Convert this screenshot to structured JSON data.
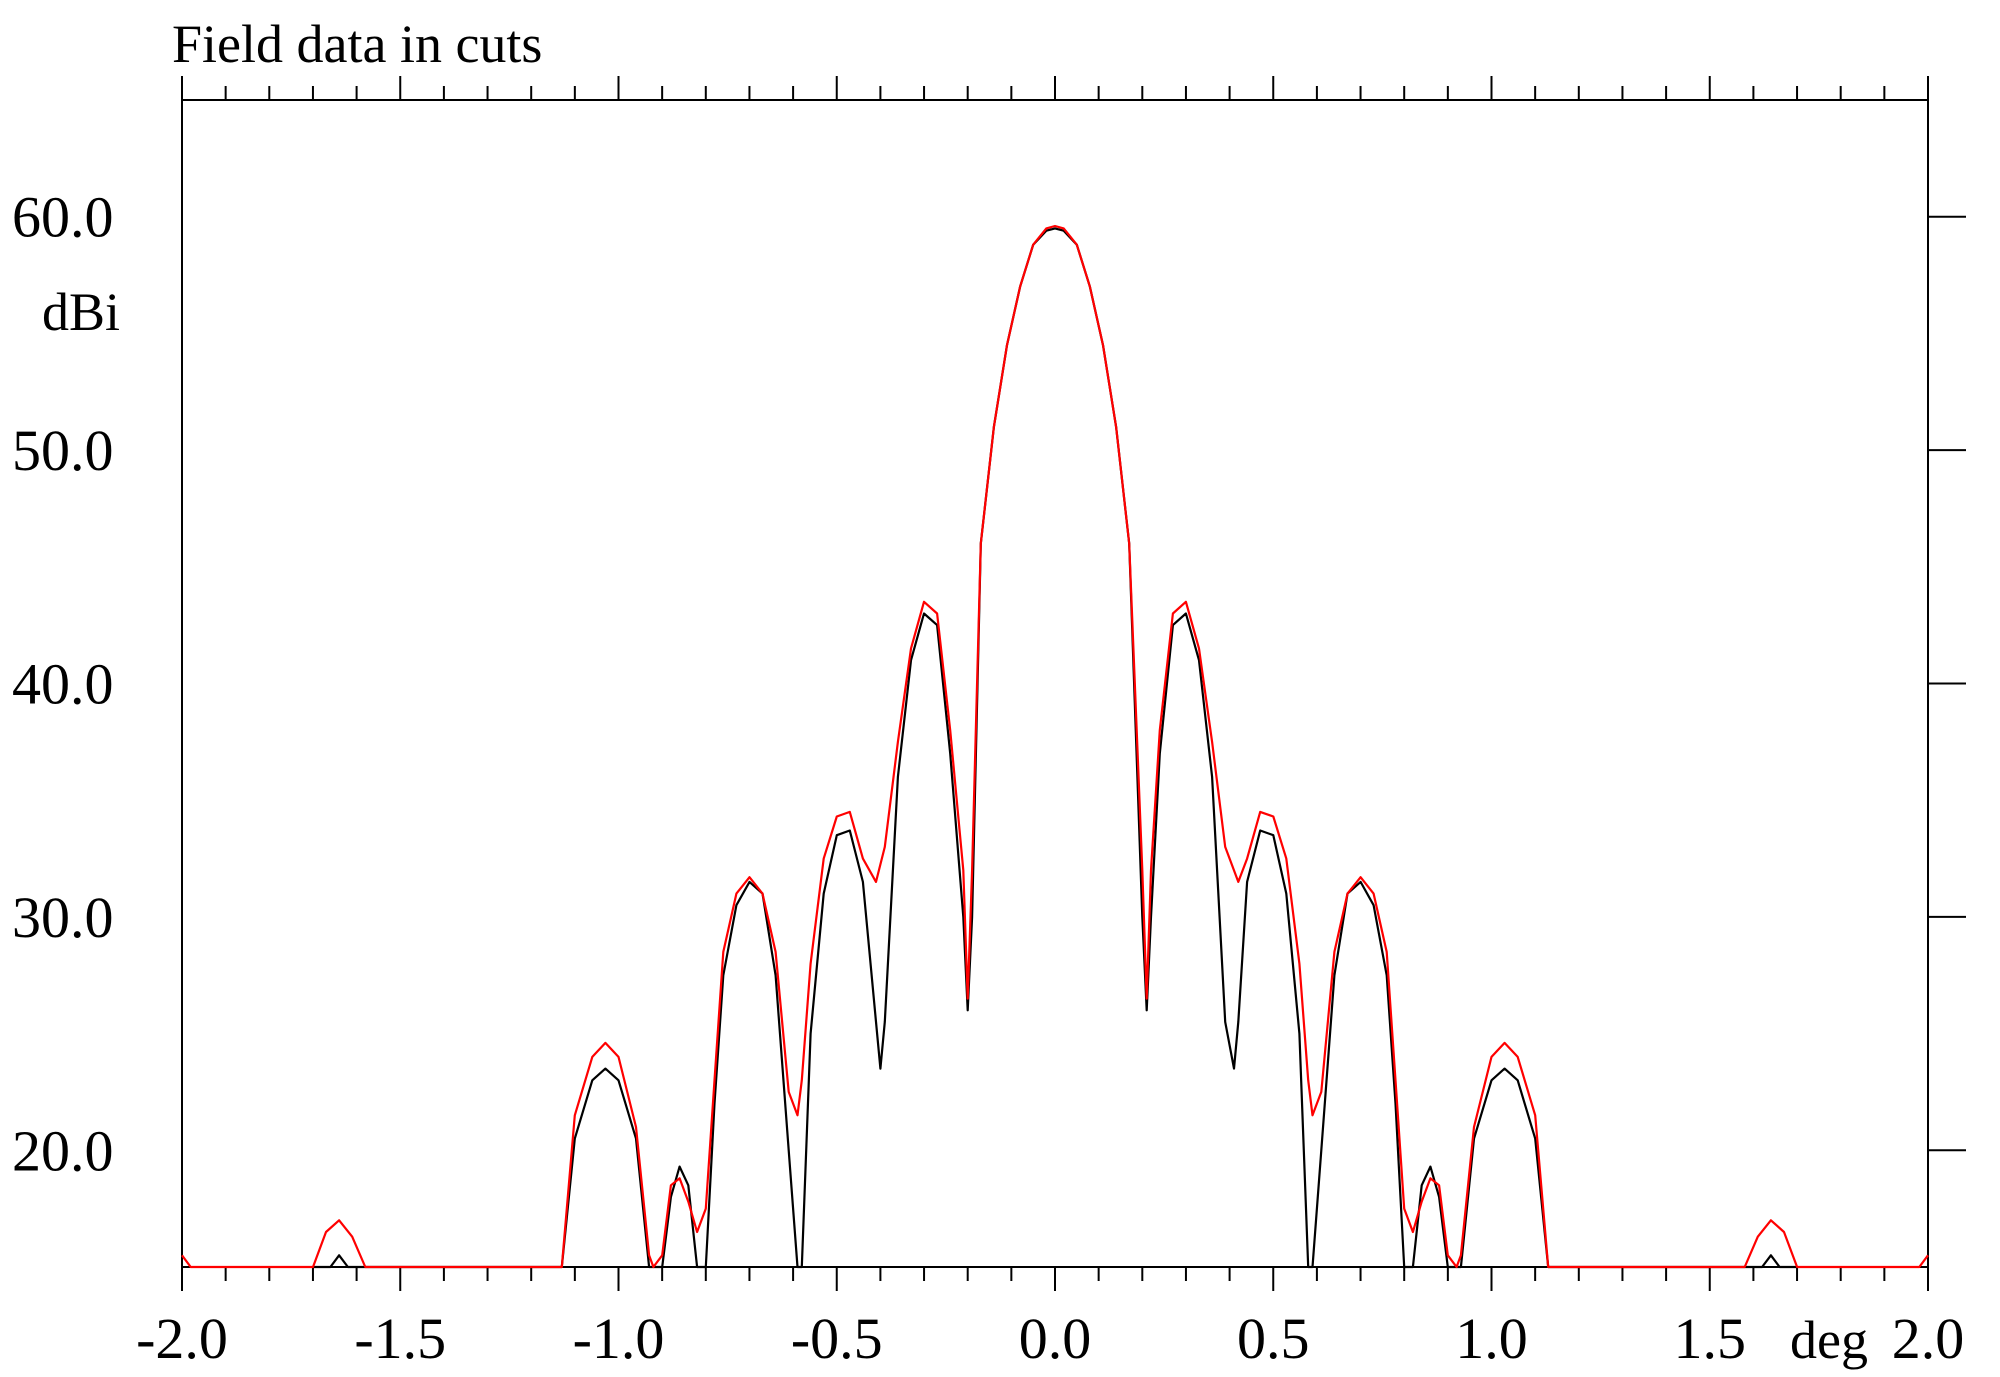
{
  "chart_data": {
    "type": "line",
    "title": "Field data in cuts",
    "xlabel": "deg",
    "ylabel": "dBi",
    "xlim": [
      -2.0,
      2.0
    ],
    "ylim": [
      15.0,
      65.0
    ],
    "grid": false,
    "x_ticks": [
      "-2.0",
      "-1.5",
      "-1.0",
      "-0.5",
      "0.0",
      "0.5",
      "1.0",
      "1.5",
      "2.0"
    ],
    "x_tick_values": [
      -2.0,
      -1.5,
      -1.0,
      -0.5,
      0.0,
      0.5,
      1.0,
      1.5,
      2.0
    ],
    "y_ticks": [
      "20.0",
      "30.0",
      "40.0",
      "50.0",
      "60.0"
    ],
    "y_tick_values": [
      20.0,
      30.0,
      40.0,
      50.0,
      60.0
    ],
    "colors": [
      "#000000",
      "#ff0000"
    ],
    "series": [
      {
        "x": [
          -1.7,
          -1.66,
          -1.64,
          -1.62,
          -1.61,
          -1.13,
          -1.1,
          -1.06,
          -1.03,
          -1.0,
          -0.96,
          -0.93,
          -0.92,
          -0.9,
          -0.88,
          -0.86,
          -0.84,
          -0.82,
          -0.8,
          -0.78,
          -0.76,
          -0.73,
          -0.7,
          -0.67,
          -0.64,
          -0.61,
          -0.59,
          -0.58,
          -0.58,
          -0.56,
          -0.53,
          -0.5,
          -0.47,
          -0.44,
          -0.41,
          -0.4,
          -0.39,
          -0.36,
          -0.33,
          -0.3,
          -0.27,
          -0.24,
          -0.21,
          -0.2,
          -0.19,
          -0.17,
          -0.14,
          -0.11,
          -0.08,
          -0.05,
          -0.02,
          0.0,
          0.02,
          0.05,
          0.08,
          0.11,
          0.14,
          0.17,
          0.2,
          0.21,
          0.22,
          0.24,
          0.27,
          0.3,
          0.33,
          0.36,
          0.39,
          0.41,
          0.42,
          0.44,
          0.47,
          0.5,
          0.53,
          0.56,
          0.58,
          0.58,
          0.59,
          0.61,
          0.64,
          0.67,
          0.7,
          0.73,
          0.76,
          0.78,
          0.8,
          0.82,
          0.84,
          0.86,
          0.88,
          0.9,
          0.92,
          0.93,
          0.96,
          1.0,
          1.03,
          1.06,
          1.1,
          1.13,
          1.61,
          1.62,
          1.64,
          1.66,
          1.7
        ],
        "y": [
          15.0,
          15.0,
          15.5,
          15.0,
          15.0,
          15.0,
          20.5,
          23.0,
          23.5,
          23.0,
          20.5,
          15.0,
          15.0,
          15.0,
          18.0,
          19.3,
          18.5,
          15.0,
          15.0,
          22.0,
          27.5,
          30.5,
          31.5,
          31.0,
          27.5,
          20.0,
          15.0,
          15.0,
          15.0,
          25.0,
          31.0,
          33.5,
          33.7,
          31.5,
          25.5,
          23.5,
          25.5,
          36.0,
          41.0,
          43.0,
          42.5,
          37.0,
          30.0,
          26.0,
          30.0,
          46.0,
          51.0,
          54.5,
          57.0,
          58.8,
          59.4,
          59.5,
          59.4,
          58.8,
          57.0,
          54.5,
          51.0,
          46.0,
          30.0,
          26.0,
          30.0,
          37.0,
          42.5,
          43.0,
          41.0,
          36.0,
          25.5,
          23.5,
          25.5,
          31.5,
          33.7,
          33.5,
          31.0,
          25.0,
          15.0,
          15.0,
          15.0,
          20.0,
          27.5,
          31.0,
          31.5,
          30.5,
          27.5,
          22.0,
          15.0,
          15.0,
          18.5,
          19.3,
          18.0,
          15.0,
          15.0,
          15.0,
          20.5,
          23.0,
          23.5,
          23.0,
          20.5,
          15.0,
          15.0,
          15.0,
          15.5,
          15.0,
          15.0
        ]
      },
      {
        "x": [
          -2.0,
          -1.98,
          -1.96,
          -1.7,
          -1.67,
          -1.64,
          -1.61,
          -1.58,
          -1.13,
          -1.1,
          -1.06,
          -1.03,
          -1.0,
          -0.96,
          -0.93,
          -0.92,
          -0.9,
          -0.88,
          -0.86,
          -0.84,
          -0.82,
          -0.8,
          -0.78,
          -0.76,
          -0.73,
          -0.7,
          -0.67,
          -0.64,
          -0.61,
          -0.59,
          -0.58,
          -0.56,
          -0.53,
          -0.5,
          -0.47,
          -0.44,
          -0.41,
          -0.39,
          -0.36,
          -0.33,
          -0.3,
          -0.27,
          -0.24,
          -0.21,
          -0.2,
          -0.19,
          -0.17,
          -0.14,
          -0.11,
          -0.08,
          -0.05,
          -0.02,
          0.0,
          0.02,
          0.05,
          0.08,
          0.11,
          0.14,
          0.17,
          0.2,
          0.21,
          0.22,
          0.24,
          0.27,
          0.3,
          0.33,
          0.36,
          0.39,
          0.42,
          0.44,
          0.47,
          0.5,
          0.53,
          0.56,
          0.58,
          0.59,
          0.61,
          0.64,
          0.67,
          0.7,
          0.73,
          0.76,
          0.78,
          0.8,
          0.82,
          0.84,
          0.86,
          0.88,
          0.9,
          0.92,
          0.93,
          0.96,
          1.0,
          1.03,
          1.06,
          1.1,
          1.13,
          1.58,
          1.61,
          1.64,
          1.67,
          1.7,
          1.96,
          1.98,
          2.0
        ],
        "y": [
          15.5,
          15.0,
          15.0,
          15.0,
          16.5,
          17.0,
          16.3,
          15.0,
          15.0,
          21.5,
          24.0,
          24.6,
          24.0,
          21.0,
          15.5,
          15.0,
          15.5,
          18.5,
          18.8,
          17.8,
          16.5,
          17.5,
          23.0,
          28.5,
          31.0,
          31.7,
          31.0,
          28.5,
          22.5,
          21.5,
          23.0,
          28.0,
          32.5,
          34.3,
          34.5,
          32.5,
          31.5,
          33.0,
          37.5,
          41.5,
          43.5,
          43.0,
          38.0,
          32.0,
          26.5,
          32.0,
          46.0,
          51.0,
          54.5,
          57.0,
          58.8,
          59.5,
          59.6,
          59.5,
          58.8,
          57.0,
          54.5,
          51.0,
          46.0,
          32.0,
          26.5,
          32.0,
          38.0,
          43.0,
          43.5,
          41.5,
          37.5,
          33.0,
          31.5,
          32.5,
          34.5,
          34.3,
          32.5,
          28.0,
          23.0,
          21.5,
          22.5,
          28.5,
          31.0,
          31.7,
          31.0,
          28.5,
          23.0,
          17.5,
          16.5,
          17.8,
          18.8,
          18.5,
          15.5,
          15.0,
          15.5,
          21.0,
          24.0,
          24.6,
          24.0,
          21.5,
          15.0,
          15.0,
          16.3,
          17.0,
          16.5,
          15.0,
          15.0,
          15.0,
          15.5
        ]
      }
    ]
  }
}
